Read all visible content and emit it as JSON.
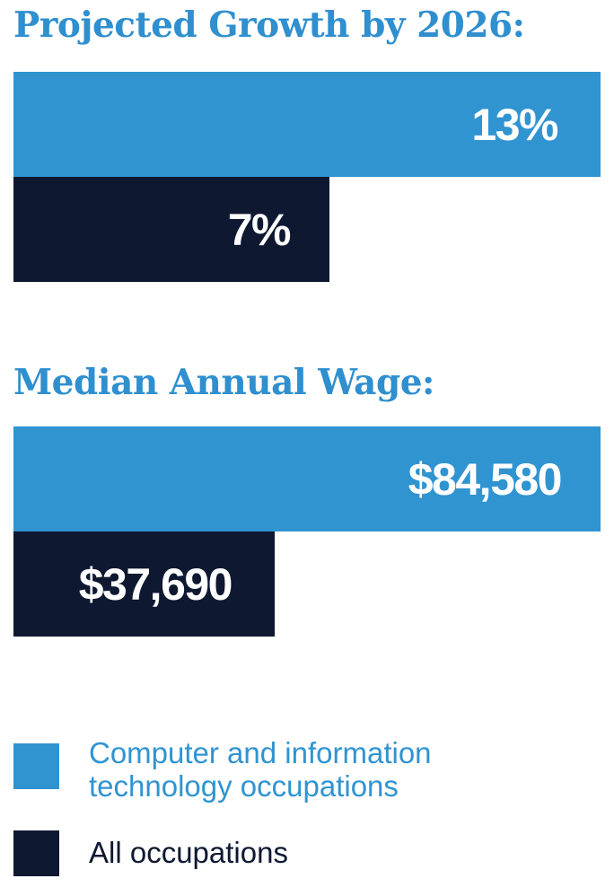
{
  "colors": {
    "primary": "#3094d1",
    "secondary": "#0e1831",
    "title": "#2f8fcf"
  },
  "chart_data": [
    {
      "type": "bar",
      "orientation": "horizontal",
      "title": "Projected Growth by 2026:",
      "categories": [
        "Computer and information technology occupations",
        "All occupations"
      ],
      "values": [
        13,
        7
      ],
      "value_labels": [
        "13%",
        "7%"
      ],
      "unit": "%",
      "max_value": 13
    },
    {
      "type": "bar",
      "orientation": "horizontal",
      "title": "Median Annual Wage:",
      "categories": [
        "Computer and information technology occupations",
        "All occupations"
      ],
      "values": [
        84580,
        37690
      ],
      "value_labels": [
        "$84,580",
        "$37,690"
      ],
      "unit": "$",
      "max_value": 84580
    }
  ],
  "legend": {
    "placement": "bottom",
    "items": [
      {
        "line1": "Computer and information",
        "line2": "technology occupations",
        "color": "#3094d1"
      },
      {
        "line1": "All occupations",
        "line2": "",
        "color": "#0e1831"
      }
    ]
  }
}
